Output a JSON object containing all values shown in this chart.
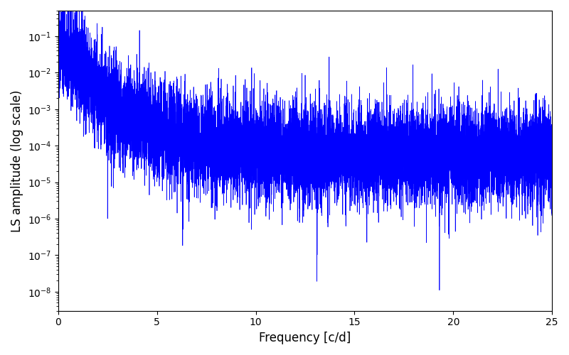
{
  "title": "",
  "xlabel": "Frequency [c/d]",
  "ylabel": "LS amplitude (log scale)",
  "xlim": [
    0,
    25
  ],
  "ylim": [
    3e-09,
    0.5
  ],
  "line_color": "#0000ff",
  "line_width": 0.5,
  "background_color": "#ffffff",
  "freq_max": 25.0,
  "n_points": 12000,
  "seed": 77
}
